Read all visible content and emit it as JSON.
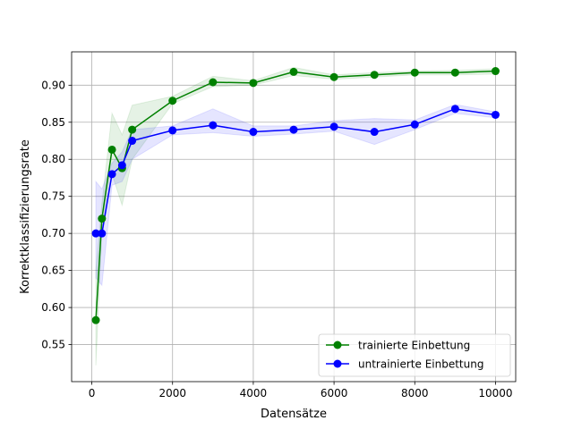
{
  "chart_data": {
    "type": "line",
    "title": "",
    "xlabel": "Datensätze",
    "ylabel": "Korrektklassifizierungsrate",
    "xlim": [
      -500,
      10500
    ],
    "ylim": [
      0.5,
      0.945
    ],
    "grid": true,
    "legend_position": "lower-right",
    "x_ticks": [
      0,
      2000,
      4000,
      6000,
      8000,
      10000
    ],
    "x_tick_labels": [
      "0",
      "2000",
      "4000",
      "6000",
      "8000",
      "10000"
    ],
    "y_ticks": [
      0.55,
      0.6,
      0.65,
      0.7,
      0.75,
      0.8,
      0.85,
      0.9
    ],
    "y_tick_labels": [
      "0.55",
      "0.60",
      "0.65",
      "0.70",
      "0.75",
      "0.80",
      "0.85",
      "0.90"
    ],
    "x": [
      100,
      250,
      500,
      750,
      1000,
      2000,
      3000,
      4000,
      5000,
      6000,
      7000,
      8000,
      9000,
      10000
    ],
    "series": [
      {
        "name": "trainierte Einbettung",
        "color": "#008000",
        "values": [
          0.583,
          0.72,
          0.813,
          0.788,
          0.84,
          0.879,
          0.904,
          0.903,
          0.918,
          0.911,
          0.914,
          0.917,
          0.917,
          0.919
        ],
        "band_low": [
          0.522,
          0.7,
          0.78,
          0.738,
          0.8,
          0.875,
          0.898,
          0.9,
          0.913,
          0.908,
          0.911,
          0.914,
          0.914,
          0.915
        ],
        "band_high": [
          0.65,
          0.74,
          0.862,
          0.833,
          0.873,
          0.885,
          0.912,
          0.906,
          0.924,
          0.914,
          0.917,
          0.919,
          0.92,
          0.922
        ]
      },
      {
        "name": "untrainierte Einbettung",
        "color": "#0000ff",
        "values": [
          0.7,
          0.7,
          0.78,
          0.792,
          0.825,
          0.839,
          0.846,
          0.837,
          0.84,
          0.844,
          0.837,
          0.847,
          0.868,
          0.86
        ],
        "band_low": [
          0.64,
          0.63,
          0.765,
          0.77,
          0.8,
          0.833,
          0.836,
          0.831,
          0.834,
          0.838,
          0.82,
          0.84,
          0.862,
          0.856
        ],
        "band_high": [
          0.77,
          0.76,
          0.795,
          0.81,
          0.84,
          0.845,
          0.868,
          0.845,
          0.845,
          0.852,
          0.855,
          0.853,
          0.874,
          0.864
        ]
      }
    ]
  }
}
